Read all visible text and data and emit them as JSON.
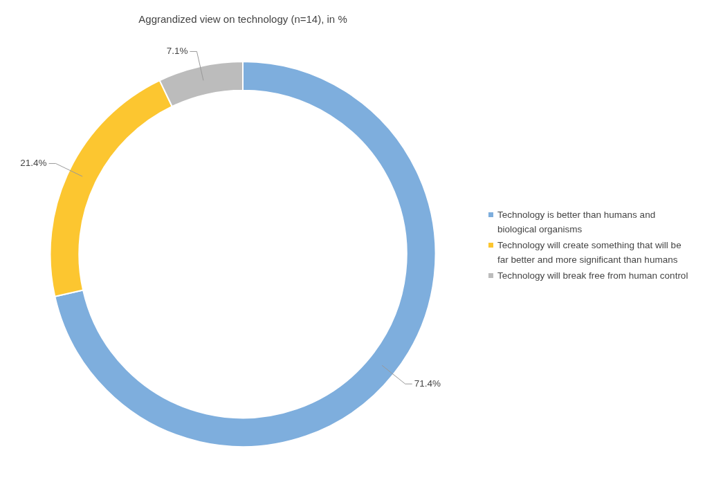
{
  "chart_data": {
    "type": "donut",
    "title": "Aggrandized view on technology (n=14), in %",
    "categories": [
      "Technology is better than humans and biological organisms",
      "Technology will create something that will be far better and more significant than humans",
      "Technology will break free from human control"
    ],
    "values": [
      71.4,
      21.4,
      7.1
    ],
    "colors": [
      "#7eaedd",
      "#fcc630",
      "#bcbcbc"
    ],
    "value_labels": [
      "71.4%",
      "21.4%",
      "7.1%"
    ],
    "legend": "right"
  }
}
